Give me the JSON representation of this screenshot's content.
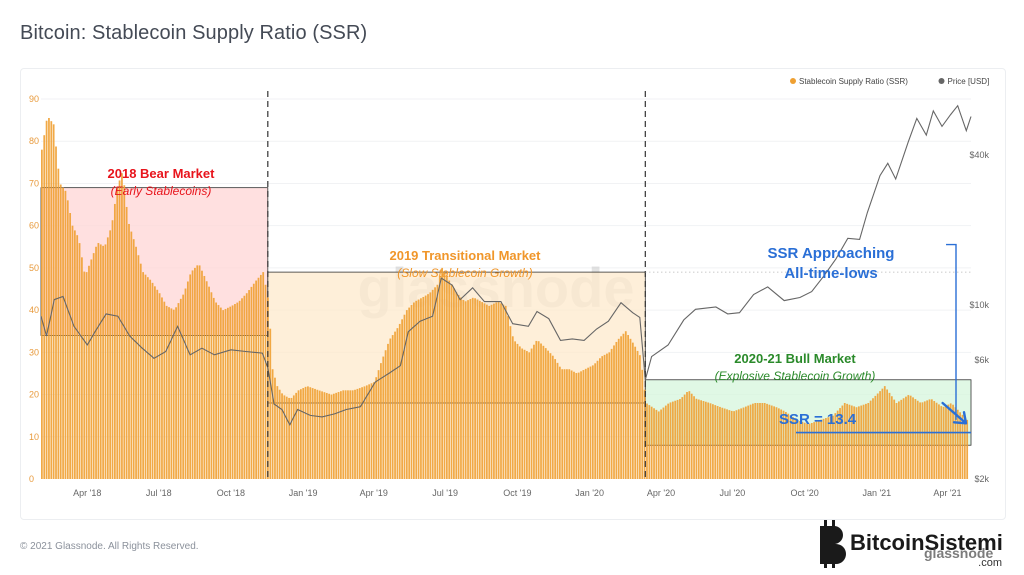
{
  "page": {
    "title": "Bitcoin: Stablecoin Supply Ratio (SSR)",
    "copyright": "© 2021 Glassnode. All Rights Reserved.",
    "watermark": "glassnode",
    "brand_logo_text": "BitcoinSistemi",
    "brand_logo_sub": ".com",
    "brand_logo_overlay": "glassnode"
  },
  "colors": {
    "ssr": "#efa032",
    "price": "#666666",
    "bear": "#e8141c",
    "transitional": "#f0962a",
    "bull": "#2a8a2a",
    "callout": "#2a6fd6"
  },
  "chart_data": {
    "type": "bar",
    "title": "Bitcoin: Stablecoin Supply Ratio (SSR)",
    "x_range": [
      "2018-02-01",
      "2021-05-01"
    ],
    "x_ticks": [
      "Apr '18",
      "Jul '18",
      "Oct '18",
      "Jan '19",
      "Apr '19",
      "Jul '19",
      "Oct '19",
      "Jan '20",
      "Apr '20",
      "Jul '20",
      "Oct '20",
      "Jan '21",
      "Apr '21"
    ],
    "y_left": {
      "ticks": [
        "0",
        "10",
        "20",
        "30",
        "40",
        "50",
        "60",
        "70",
        "80",
        "90"
      ],
      "range": [
        0,
        90
      ]
    },
    "y_right": {
      "ticks": [
        "$2k",
        "$6k",
        "$10k",
        "$40k"
      ],
      "scale": "log"
    },
    "legend": [
      {
        "name": "Stablecoin Supply Ratio (SSR)",
        "color": "#efa032"
      },
      {
        "name": "Price [USD]",
        "color": "#666666"
      }
    ],
    "legend_position": "top-right",
    "grid": true,
    "series": [
      {
        "name": "Stablecoin Supply Ratio (SSR)",
        "type": "bar",
        "points": [
          [
            "2018-02-01",
            78
          ],
          [
            "2018-02-08",
            86
          ],
          [
            "2018-02-16",
            84
          ],
          [
            "2018-02-24",
            70
          ],
          [
            "2018-03-04",
            68
          ],
          [
            "2018-03-12",
            60
          ],
          [
            "2018-03-20",
            57
          ],
          [
            "2018-03-28",
            48
          ],
          [
            "2018-04-05",
            52
          ],
          [
            "2018-04-13",
            56
          ],
          [
            "2018-04-22",
            55
          ],
          [
            "2018-05-01",
            60
          ],
          [
            "2018-05-08",
            69
          ],
          [
            "2018-05-15",
            73
          ],
          [
            "2018-05-22",
            61
          ],
          [
            "2018-06-01",
            55
          ],
          [
            "2018-06-10",
            49
          ],
          [
            "2018-06-20",
            47
          ],
          [
            "2018-07-01",
            44
          ],
          [
            "2018-07-10",
            41
          ],
          [
            "2018-07-20",
            40
          ],
          [
            "2018-08-01",
            44
          ],
          [
            "2018-08-10",
            49
          ],
          [
            "2018-08-20",
            51
          ],
          [
            "2018-09-01",
            46
          ],
          [
            "2018-09-10",
            42
          ],
          [
            "2018-09-20",
            40
          ],
          [
            "2018-10-01",
            41
          ],
          [
            "2018-10-10",
            42
          ],
          [
            "2018-10-20",
            44
          ],
          [
            "2018-11-01",
            47
          ],
          [
            "2018-11-10",
            49
          ],
          [
            "2018-11-17",
            42
          ],
          [
            "2018-11-22",
            26
          ],
          [
            "2018-11-28",
            22
          ],
          [
            "2018-12-05",
            20
          ],
          [
            "2018-12-15",
            19
          ],
          [
            "2018-12-25",
            21
          ],
          [
            "2019-01-05",
            22
          ],
          [
            "2019-01-20",
            21
          ],
          [
            "2019-02-05",
            20
          ],
          [
            "2019-02-20",
            21
          ],
          [
            "2019-03-05",
            21
          ],
          [
            "2019-03-20",
            22
          ],
          [
            "2019-04-01",
            23
          ],
          [
            "2019-04-10",
            28
          ],
          [
            "2019-04-20",
            33
          ],
          [
            "2019-05-01",
            36
          ],
          [
            "2019-05-12",
            40
          ],
          [
            "2019-05-22",
            42
          ],
          [
            "2019-06-01",
            43
          ],
          [
            "2019-06-10",
            44
          ],
          [
            "2019-06-20",
            46
          ],
          [
            "2019-06-26",
            50
          ],
          [
            "2019-07-05",
            47
          ],
          [
            "2019-07-15",
            44
          ],
          [
            "2019-07-25",
            42
          ],
          [
            "2019-08-05",
            43
          ],
          [
            "2019-08-15",
            42
          ],
          [
            "2019-08-25",
            41
          ],
          [
            "2019-09-05",
            42
          ],
          [
            "2019-09-15",
            41
          ],
          [
            "2019-09-25",
            33
          ],
          [
            "2019-10-05",
            31
          ],
          [
            "2019-10-15",
            30
          ],
          [
            "2019-10-25",
            33
          ],
          [
            "2019-11-05",
            31
          ],
          [
            "2019-11-15",
            29
          ],
          [
            "2019-11-25",
            26
          ],
          [
            "2019-12-05",
            26
          ],
          [
            "2019-12-15",
            25
          ],
          [
            "2019-12-25",
            26
          ],
          [
            "2020-01-05",
            27
          ],
          [
            "2020-01-15",
            29
          ],
          [
            "2020-01-25",
            30
          ],
          [
            "2020-02-05",
            33
          ],
          [
            "2020-02-15",
            35
          ],
          [
            "2020-02-25",
            32
          ],
          [
            "2020-03-05",
            29
          ],
          [
            "2020-03-12",
            18
          ],
          [
            "2020-03-20",
            17
          ],
          [
            "2020-03-28",
            16
          ],
          [
            "2020-04-10",
            18
          ],
          [
            "2020-04-25",
            19
          ],
          [
            "2020-05-05",
            21
          ],
          [
            "2020-05-15",
            19
          ],
          [
            "2020-06-01",
            18
          ],
          [
            "2020-06-15",
            17
          ],
          [
            "2020-07-01",
            16
          ],
          [
            "2020-07-15",
            17
          ],
          [
            "2020-07-28",
            18
          ],
          [
            "2020-08-10",
            18
          ],
          [
            "2020-08-25",
            17
          ],
          [
            "2020-09-05",
            16
          ],
          [
            "2020-09-20",
            14
          ],
          [
            "2020-10-05",
            13
          ],
          [
            "2020-10-20",
            14
          ],
          [
            "2020-11-05",
            15
          ],
          [
            "2020-11-20",
            18
          ],
          [
            "2020-12-05",
            17
          ],
          [
            "2020-12-20",
            18
          ],
          [
            "2021-01-05",
            21
          ],
          [
            "2021-01-10",
            22
          ],
          [
            "2021-01-25",
            18
          ],
          [
            "2021-02-10",
            20
          ],
          [
            "2021-02-25",
            18
          ],
          [
            "2021-03-10",
            19
          ],
          [
            "2021-03-25",
            17
          ],
          [
            "2021-04-05",
            18
          ],
          [
            "2021-04-15",
            16
          ],
          [
            "2021-04-25",
            14
          ]
        ]
      },
      {
        "name": "Price [USD]",
        "type": "line",
        "points": [
          [
            "2018-02-01",
            9000
          ],
          [
            "2018-02-08",
            7500
          ],
          [
            "2018-02-18",
            10500
          ],
          [
            "2018-03-01",
            10800
          ],
          [
            "2018-03-15",
            8200
          ],
          [
            "2018-04-01",
            6900
          ],
          [
            "2018-04-12",
            7900
          ],
          [
            "2018-04-25",
            9200
          ],
          [
            "2018-05-10",
            9000
          ],
          [
            "2018-05-25",
            7500
          ],
          [
            "2018-06-10",
            6700
          ],
          [
            "2018-06-25",
            6100
          ],
          [
            "2018-07-10",
            6500
          ],
          [
            "2018-07-25",
            8200
          ],
          [
            "2018-08-10",
            6300
          ],
          [
            "2018-08-25",
            6700
          ],
          [
            "2018-09-10",
            6300
          ],
          [
            "2018-10-01",
            6600
          ],
          [
            "2018-10-20",
            6500
          ],
          [
            "2018-11-10",
            6400
          ],
          [
            "2018-11-17",
            5600
          ],
          [
            "2018-11-25",
            4000
          ],
          [
            "2018-12-05",
            3800
          ],
          [
            "2018-12-15",
            3300
          ],
          [
            "2018-12-25",
            3800
          ],
          [
            "2019-01-10",
            3600
          ],
          [
            "2019-01-25",
            3550
          ],
          [
            "2019-02-10",
            3650
          ],
          [
            "2019-02-25",
            3800
          ],
          [
            "2019-03-15",
            3900
          ],
          [
            "2019-04-03",
            4900
          ],
          [
            "2019-04-20",
            5300
          ],
          [
            "2019-05-05",
            5700
          ],
          [
            "2019-05-15",
            7800
          ],
          [
            "2019-05-30",
            8600
          ],
          [
            "2019-06-15",
            9000
          ],
          [
            "2019-06-26",
            12800
          ],
          [
            "2019-07-10",
            12000
          ],
          [
            "2019-07-20",
            10500
          ],
          [
            "2019-08-05",
            11700
          ],
          [
            "2019-08-20",
            10300
          ],
          [
            "2019-09-10",
            10300
          ],
          [
            "2019-09-25",
            8400
          ],
          [
            "2019-10-15",
            8200
          ],
          [
            "2019-10-26",
            9400
          ],
          [
            "2019-11-10",
            8800
          ],
          [
            "2019-11-25",
            7200
          ],
          [
            "2019-12-10",
            7300
          ],
          [
            "2019-12-25",
            7200
          ],
          [
            "2020-01-10",
            8000
          ],
          [
            "2020-01-25",
            8600
          ],
          [
            "2020-02-10",
            10200
          ],
          [
            "2020-02-25",
            9300
          ],
          [
            "2020-03-05",
            8900
          ],
          [
            "2020-03-12",
            5000
          ],
          [
            "2020-03-20",
            6200
          ],
          [
            "2020-04-10",
            6900
          ],
          [
            "2020-04-30",
            8700
          ],
          [
            "2020-05-15",
            9600
          ],
          [
            "2020-06-10",
            9800
          ],
          [
            "2020-06-25",
            9200
          ],
          [
            "2020-07-10",
            9300
          ],
          [
            "2020-07-28",
            11000
          ],
          [
            "2020-08-15",
            11800
          ],
          [
            "2020-09-05",
            10400
          ],
          [
            "2020-09-25",
            10700
          ],
          [
            "2020-10-10",
            11300
          ],
          [
            "2020-10-25",
            13000
          ],
          [
            "2020-11-10",
            15300
          ],
          [
            "2020-11-25",
            18500
          ],
          [
            "2020-12-10",
            18300
          ],
          [
            "2020-12-20",
            23500
          ],
          [
            "2021-01-05",
            33000
          ],
          [
            "2021-01-15",
            37000
          ],
          [
            "2021-01-25",
            32000
          ],
          [
            "2021-02-10",
            45000
          ],
          [
            "2021-02-21",
            56000
          ],
          [
            "2021-03-05",
            48000
          ],
          [
            "2021-03-14",
            60000
          ],
          [
            "2021-03-25",
            52000
          ],
          [
            "2021-04-05",
            58000
          ],
          [
            "2021-04-14",
            63000
          ],
          [
            "2021-04-25",
            50000
          ],
          [
            "2021-05-01",
            57000
          ]
        ]
      }
    ],
    "regions": [
      {
        "id": "bear",
        "x": [
          "2018-02-01",
          "2018-11-17"
        ],
        "y": [
          34,
          69
        ],
        "title": "2018 Bear Market",
        "subtitle": "(Early Stablecoins)"
      },
      {
        "id": "transitional",
        "x": [
          "2018-11-17",
          "2020-03-12"
        ],
        "y": [
          18,
          49
        ],
        "title": "2019 Transitional Market",
        "subtitle": "(Slow Stablecoin Growth)"
      },
      {
        "id": "bull",
        "x": [
          "2020-03-12",
          "2021-05-01"
        ],
        "y": [
          8,
          23.5
        ],
        "title": "2020-21 Bull Market",
        "subtitle": "(Explosive Stablecoin Growth)"
      }
    ],
    "dividers": [
      "2018-11-17",
      "2020-03-12"
    ],
    "reference_lines": [
      {
        "y": 11,
        "from": "2020-09-20",
        "to": "2021-05-01"
      },
      {
        "y": 49,
        "from": "2020-03-12",
        "to": "2021-05-01",
        "dotted": true
      }
    ],
    "annotations": [
      {
        "id": "ssr-approach",
        "lines": [
          "SSR Approaching",
          "All-time-lows"
        ]
      },
      {
        "id": "ssr-value",
        "text": "SSR = 13.4"
      }
    ]
  }
}
